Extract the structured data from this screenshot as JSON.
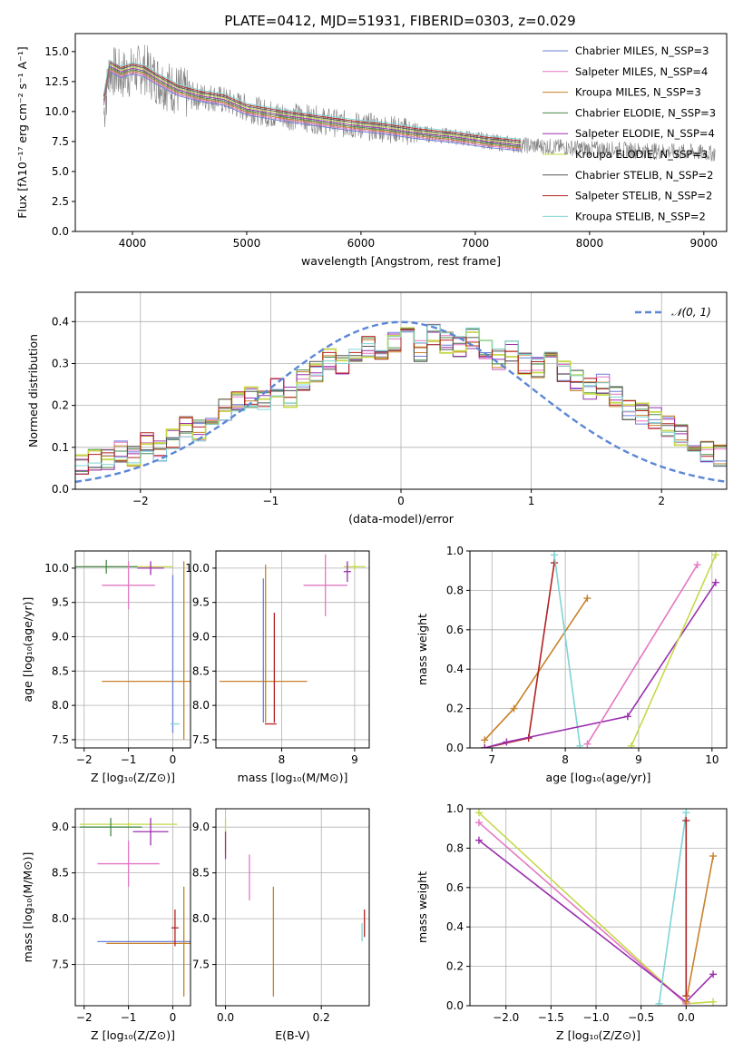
{
  "chart_data": [
    {
      "id": "spectrum",
      "type": "line",
      "title": "PLATE=0412, MJD=51931, FIBERID=0303, z=0.029",
      "xlabel": "wavelength [Angstrom, rest frame]",
      "ylabel": "Flux [fλ10⁻¹⁷ erg cm⁻² s⁻¹ A⁻¹]",
      "xlim": [
        3500,
        9200
      ],
      "ylim": [
        0,
        16.5
      ],
      "xticks": [
        4000,
        5000,
        6000,
        7000,
        8000,
        9000
      ],
      "xtick_labels": [
        "4000",
        "5000",
        "6000",
        "7000",
        "8000",
        "9000"
      ],
      "yticks": [
        0,
        2.5,
        5,
        7.5,
        10,
        12.5,
        15
      ],
      "ytick_labels": [
        "0.0",
        "2.5",
        "5.0",
        "7.5",
        "10.0",
        "12.5",
        "15.0"
      ],
      "grid": false,
      "legend_position": "upper-right",
      "data_color": "#808080",
      "data_x": [
        3750,
        3800,
        3900,
        4000,
        4100,
        4200,
        4300,
        4500,
        4700,
        5000,
        5200,
        5500,
        5800,
        6000,
        6300,
        6500,
        6600,
        6800,
        7000,
        7200,
        7400,
        7600,
        7800,
        8000,
        8300,
        8600,
        8900,
        9100
      ],
      "data_y": [
        9.8,
        13.5,
        13.0,
        13.3,
        13.6,
        12.8,
        12.2,
        11.3,
        11.2,
        10.3,
        9.8,
        9.5,
        9.0,
        8.8,
        8.5,
        8.2,
        8.1,
        7.9,
        7.7,
        7.4,
        7.2,
        7.1,
        7.0,
        6.9,
        6.8,
        6.7,
        6.6,
        6.5
      ],
      "series": [
        {
          "name": "Chabrier MILES, N_SSP=3",
          "color": "#6b7fd7"
        },
        {
          "name": "Salpeter MILES, N_SSP=4",
          "color": "#e377c2"
        },
        {
          "name": "Kroupa MILES, N_SSP=3",
          "color": "#c8812a"
        },
        {
          "name": "Chabrier ELODIE, N_SSP=3",
          "color": "#4a8a4a"
        },
        {
          "name": "Salpeter ELODIE, N_SSP=4",
          "color": "#9b2fae"
        },
        {
          "name": "Kroupa ELODIE, N_SSP=3",
          "color": "#c6d84a"
        },
        {
          "name": "Chabrier STELIB, N_SSP=2",
          "color": "#555555"
        },
        {
          "name": "Salpeter STELIB, N_SSP=2",
          "color": "#b22222"
        },
        {
          "name": "Kroupa STELIB, N_SSP=2",
          "color": "#7fd4d4"
        }
      ],
      "model_x": [
        3750,
        3800,
        3900,
        4000,
        4100,
        4200,
        4400,
        4600,
        4800,
        5000,
        5300,
        5600,
        5900,
        6200,
        6500,
        6800,
        7100,
        7400
      ],
      "model_y": [
        11.0,
        13.8,
        13.3,
        13.6,
        13.4,
        12.8,
        11.8,
        11.3,
        11.0,
        10.2,
        9.7,
        9.3,
        8.9,
        8.6,
        8.2,
        7.9,
        7.5,
        7.2
      ]
    },
    {
      "id": "residuals",
      "type": "histogram",
      "xlabel": "(data-model)/error",
      "ylabel": "Normed distribution",
      "xlim": [
        -2.5,
        2.5
      ],
      "ylim": [
        0,
        0.47
      ],
      "xticks": [
        -2,
        -1,
        0,
        1,
        2
      ],
      "xtick_labels": [
        "−2",
        "−1",
        "0",
        "1",
        "2"
      ],
      "yticks": [
        0,
        0.1,
        0.2,
        0.3,
        0.4
      ],
      "ytick_labels": [
        "0.0",
        "0.1",
        "0.2",
        "0.3",
        "0.4"
      ],
      "grid": true,
      "legend_label": "𝒩(0, 1)",
      "legend_position": "upper-right",
      "gaussian_color": "#5b87d6",
      "bins_start": -2.5,
      "bin_width": 0.1,
      "hist": [
        0.06,
        0.07,
        0.07,
        0.09,
        0.08,
        0.11,
        0.09,
        0.12,
        0.15,
        0.14,
        0.18,
        0.19,
        0.21,
        0.22,
        0.21,
        0.24,
        0.22,
        0.26,
        0.28,
        0.31,
        0.3,
        0.33,
        0.34,
        0.32,
        0.35,
        0.36,
        0.33,
        0.37,
        0.35,
        0.34,
        0.36,
        0.33,
        0.31,
        0.33,
        0.3,
        0.29,
        0.31,
        0.28,
        0.26,
        0.24,
        0.25,
        0.22,
        0.19,
        0.18,
        0.17,
        0.15,
        0.13,
        0.11,
        0.09,
        0.08
      ]
    },
    {
      "id": "age-vs-Z",
      "type": "scatter",
      "xlabel": "Z [log₁₀(Z/Z⊙)]",
      "ylabel": "age  [log₁₀(age/yr)]",
      "xlim": [
        -2.2,
        0.4
      ],
      "ylim": [
        7.38,
        10.25
      ],
      "xticks": [
        -2,
        -1,
        0
      ],
      "xtick_labels": [
        "−2",
        "−1",
        "0"
      ],
      "yticks": [
        7.5,
        8.0,
        8.5,
        9.0,
        9.5,
        10.0
      ],
      "ytick_labels": [
        "7.5",
        "8.0",
        "8.5",
        "9.0",
        "9.5",
        "10.0"
      ],
      "grid": true,
      "points": [
        {
          "x": -1.0,
          "y": 10.02,
          "xerr": 1.0,
          "yerr": 0.02,
          "color": "#c6d84a"
        },
        {
          "x": -1.5,
          "y": 10.02,
          "xerr": 0.7,
          "yerr": 0.1,
          "color": "#4a8a4a"
        },
        {
          "x": -0.5,
          "y": 10.0,
          "xerr": 0.3,
          "yerr": 0.1,
          "color": "#9b2fae"
        },
        {
          "x": -1.0,
          "y": 9.75,
          "xerr": 0.6,
          "yerr": 0.35,
          "color": "#e377c2"
        },
        {
          "x": -0.3,
          "y": 8.35,
          "xerr": 1.3,
          "yerr": 0.0,
          "color": "#c8812a"
        },
        {
          "x": 0.25,
          "y": 8.8,
          "xerr": 0.0,
          "yerr": 1.3,
          "color": "#c8812a"
        },
        {
          "x": 0.0,
          "y": 8.75,
          "xerr": 0.0,
          "yerr": 1.15,
          "color": "#6b7fd7"
        },
        {
          "x": 0.05,
          "y": 7.73,
          "xerr": 0.1,
          "yerr": 0.0,
          "color": "#7fd4d4"
        }
      ]
    },
    {
      "id": "age-vs-mass",
      "type": "scatter",
      "xlabel": "mass [log₁₀(M/M⊙)]",
      "ylabel": "",
      "xlim": [
        7.1,
        9.2
      ],
      "ylim": [
        7.38,
        10.25
      ],
      "xticks": [
        8,
        9
      ],
      "xtick_labels": [
        "8",
        "9"
      ],
      "yticks": [
        7.5,
        8.0,
        8.5,
        9.0,
        9.5,
        10.0
      ],
      "ytick_labels": [
        "7.5",
        "8.0",
        "8.5",
        "9.0",
        "9.5",
        "10.0"
      ],
      "grid": true,
      "points": [
        {
          "x": 9.0,
          "y": 10.02,
          "xerr": 0.15,
          "yerr": 0.05,
          "color": "#c6d84a"
        },
        {
          "x": 8.9,
          "y": 9.95,
          "xerr": 0.05,
          "yerr": 0.15,
          "color": "#9b2fae"
        },
        {
          "x": 8.6,
          "y": 9.75,
          "xerr": 0.3,
          "yerr": 0.45,
          "color": "#e377c2"
        },
        {
          "x": 7.75,
          "y": 8.35,
          "xerr": 0.6,
          "yerr": 0.0,
          "color": "#c8812a"
        },
        {
          "x": 7.78,
          "y": 8.9,
          "xerr": 0.0,
          "yerr": 1.15,
          "color": "#c8812a"
        },
        {
          "x": 7.75,
          "y": 8.8,
          "xerr": 0.0,
          "yerr": 1.05,
          "color": "#6b7fd7"
        },
        {
          "x": 7.9,
          "y": 8.55,
          "xerr": 0.0,
          "yerr": 0.8,
          "color": "#b22222"
        },
        {
          "x": 7.85,
          "y": 7.73,
          "xerr": 0.08,
          "yerr": 0.0,
          "color": "#b22222"
        }
      ]
    },
    {
      "id": "mass-weight-vs-age",
      "type": "line",
      "xlabel": "age  [log₁₀(age/yr)]",
      "ylabel": "mass weight",
      "xlim": [
        6.7,
        10.2
      ],
      "ylim": [
        0,
        1.0
      ],
      "xticks": [
        7,
        8,
        9,
        10
      ],
      "xtick_labels": [
        "7",
        "8",
        "9",
        "10"
      ],
      "yticks": [
        0,
        0.2,
        0.4,
        0.6,
        0.8,
        1.0
      ],
      "ytick_labels": [
        "0.0",
        "0.2",
        "0.4",
        "0.6",
        "0.8",
        "1.0"
      ],
      "grid": true,
      "series": [
        {
          "color": "#c8812a",
          "x": [
            6.9,
            7.3,
            8.3
          ],
          "y": [
            0.04,
            0.2,
            0.76
          ]
        },
        {
          "color": "#b22222",
          "x": [
            6.9,
            7.5,
            7.85
          ],
          "y": [
            0.0,
            0.05,
            0.94
          ]
        },
        {
          "color": "#7fd4d4",
          "x": [
            7.85,
            8.2
          ],
          "y": [
            0.98,
            0.01
          ]
        },
        {
          "color": "#9b2fae",
          "x": [
            6.9,
            7.2,
            8.85,
            10.05
          ],
          "y": [
            0.0,
            0.03,
            0.16,
            0.84
          ]
        },
        {
          "color": "#e377c2",
          "x": [
            8.3,
            9.8
          ],
          "y": [
            0.02,
            0.93
          ]
        },
        {
          "color": "#c6d84a",
          "x": [
            8.9,
            10.05
          ],
          "y": [
            0.01,
            0.98
          ]
        }
      ]
    },
    {
      "id": "mass-vs-Z",
      "type": "scatter",
      "xlabel": "Z [log₁₀(Z/Z⊙)]",
      "ylabel": "mass [log₁₀(M/M⊙)]",
      "xlim": [
        -2.2,
        0.4
      ],
      "ylim": [
        7.05,
        9.2
      ],
      "xticks": [
        -2,
        -1,
        0
      ],
      "xtick_labels": [
        "−2",
        "−1",
        "0"
      ],
      "yticks": [
        7.5,
        8.0,
        8.5,
        9.0
      ],
      "ytick_labels": [
        "7.5",
        "8.0",
        "8.5",
        "9.0"
      ],
      "grid": true,
      "points": [
        {
          "x": -1.0,
          "y": 9.03,
          "xerr": 1.1,
          "yerr": 0.02,
          "color": "#c6d84a"
        },
        {
          "x": -1.4,
          "y": 9.0,
          "xerr": 0.7,
          "yerr": 0.1,
          "color": "#4a8a4a"
        },
        {
          "x": -0.5,
          "y": 8.95,
          "xerr": 0.4,
          "yerr": 0.15,
          "color": "#9b2fae"
        },
        {
          "x": -1.0,
          "y": 8.6,
          "xerr": 0.7,
          "yerr": 0.25,
          "color": "#e377c2"
        },
        {
          "x": -0.5,
          "y": 7.75,
          "xerr": 1.2,
          "yerr": 0.0,
          "color": "#6b7fd7"
        },
        {
          "x": -0.3,
          "y": 7.73,
          "xerr": 1.2,
          "yerr": 0.0,
          "color": "#c8812a"
        },
        {
          "x": 0.25,
          "y": 7.75,
          "xerr": 0.0,
          "yerr": 0.6,
          "color": "#c8812a"
        },
        {
          "x": 0.05,
          "y": 7.9,
          "xerr": 0.08,
          "yerr": 0.2,
          "color": "#b22222"
        }
      ]
    },
    {
      "id": "mass-vs-EBV",
      "type": "scatter",
      "xlabel": "E(B-V)",
      "ylabel": "",
      "xlim": [
        -0.02,
        0.3
      ],
      "ylim": [
        7.05,
        9.2
      ],
      "xticks": [
        0.0,
        0.2
      ],
      "xtick_labels": [
        "0.0",
        "0.2"
      ],
      "yticks": [
        7.5,
        8.0,
        8.5,
        9.0
      ],
      "ytick_labels": [
        "7.5",
        "8.0",
        "8.5",
        "9.0"
      ],
      "grid": true,
      "points": [
        {
          "x": 0.0,
          "y": 8.9,
          "xerr": 0.0,
          "yerr": 0.2,
          "color": "#c6d84a"
        },
        {
          "x": 0.0,
          "y": 8.8,
          "xerr": 0.0,
          "yerr": 0.15,
          "color": "#9b2fae"
        },
        {
          "x": 0.05,
          "y": 8.45,
          "xerr": 0.0,
          "yerr": 0.25,
          "color": "#e377c2"
        },
        {
          "x": 0.1,
          "y": 7.75,
          "xerr": 0.0,
          "yerr": 0.6,
          "color": "#c8812a"
        },
        {
          "x": 0.29,
          "y": 7.95,
          "xerr": 0.0,
          "yerr": 0.15,
          "color": "#b22222"
        },
        {
          "x": 0.285,
          "y": 7.85,
          "xerr": 0.0,
          "yerr": 0.1,
          "color": "#7fd4d4"
        }
      ]
    },
    {
      "id": "mass-weight-vs-Z",
      "type": "line",
      "xlabel": "Z [log₁₀(Z/Z⊙)]",
      "ylabel": "mass weight",
      "xlim": [
        -2.4,
        0.45
      ],
      "ylim": [
        0,
        1.0
      ],
      "xticks": [
        -2.0,
        -1.5,
        -1.0,
        -0.5,
        0.0
      ],
      "xtick_labels": [
        "−2.0",
        "−1.5",
        "−1.0",
        "−0.5",
        "0.0"
      ],
      "yticks": [
        0,
        0.2,
        0.4,
        0.6,
        0.8,
        1.0
      ],
      "ytick_labels": [
        "0.0",
        "0.2",
        "0.4",
        "0.6",
        "0.8",
        "1.0"
      ],
      "grid": true,
      "series": [
        {
          "color": "#c6d84a",
          "x": [
            -2.3,
            0.0,
            0.3
          ],
          "y": [
            0.98,
            0.01,
            0.02
          ]
        },
        {
          "color": "#e377c2",
          "x": [
            -2.3,
            0.0
          ],
          "y": [
            0.93,
            0.01
          ]
        },
        {
          "color": "#9b2fae",
          "x": [
            -2.3,
            0.0,
            0.3
          ],
          "y": [
            0.84,
            0.02,
            0.16
          ]
        },
        {
          "color": "#7fd4d4",
          "x": [
            -0.3,
            0.0
          ],
          "y": [
            0.01,
            0.98
          ]
        },
        {
          "color": "#b22222",
          "x": [
            0.0,
            0.0
          ],
          "y": [
            0.94,
            0.05
          ]
        },
        {
          "color": "#c8812a",
          "x": [
            0.0,
            0.3
          ],
          "y": [
            0.02,
            0.76
          ]
        }
      ]
    }
  ]
}
